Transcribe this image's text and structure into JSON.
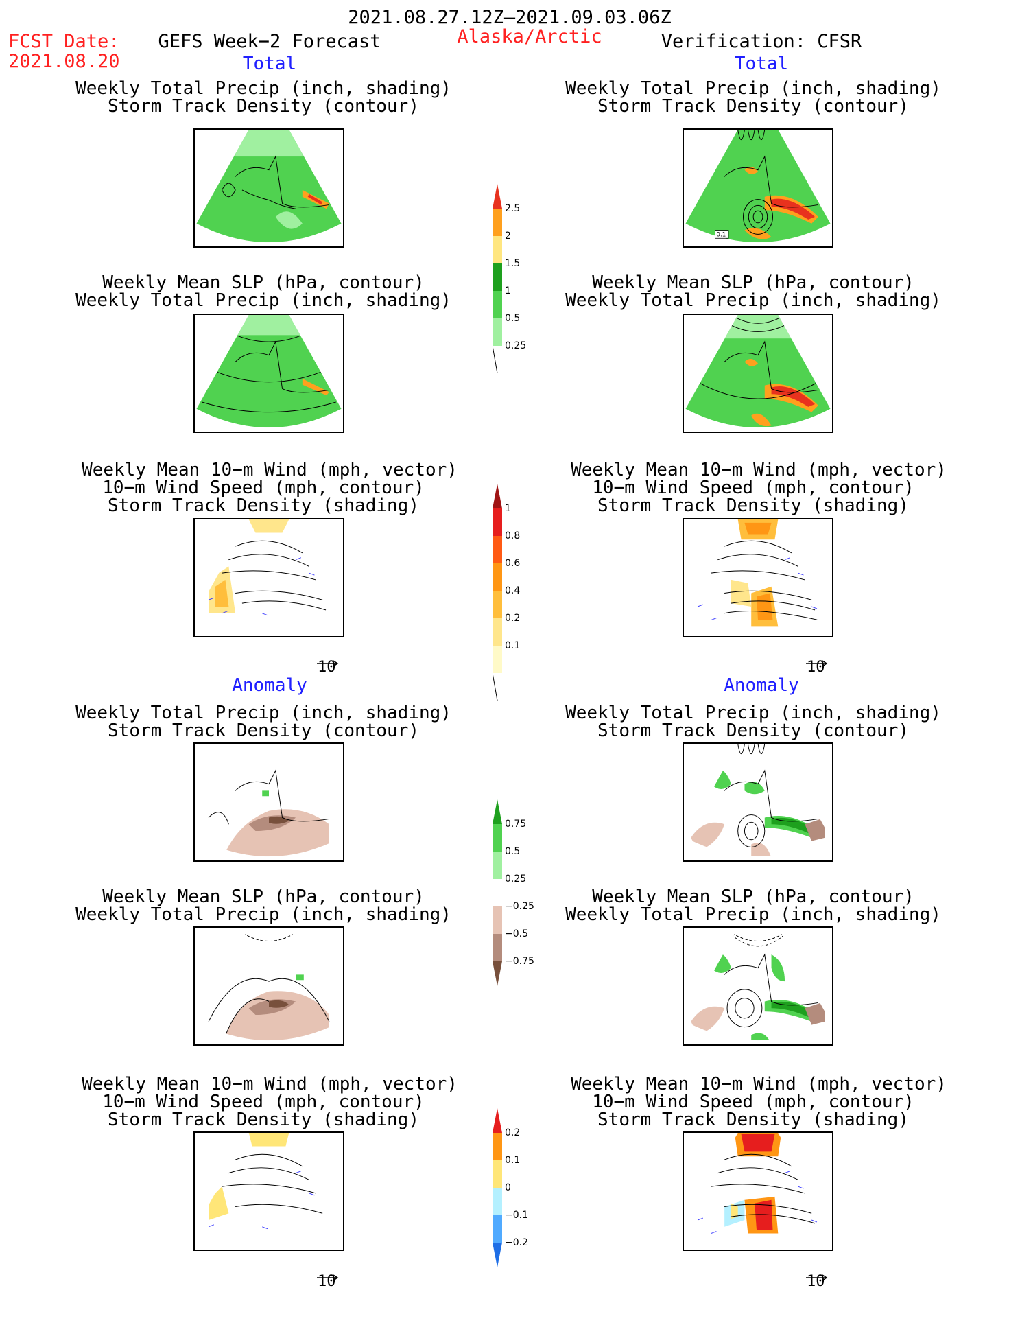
{
  "header": {
    "date_range": "2021.08.27.12Z–2021.09.03.06Z",
    "fcst_label": "FCST Date:",
    "fcst_date": "2021.08.20",
    "forecast_title": "GEFS Week−2 Forecast",
    "region": "Alaska/Arctic",
    "verification": "Verification: CFSR"
  },
  "sections": {
    "total": "Total",
    "anomaly": "Anomaly"
  },
  "panel_titles": {
    "precip_track": [
      "Weekly Total Precip (inch, shading)",
      "Storm Track Density (contour)"
    ],
    "slp_precip": [
      "Weekly Mean SLP (hPa, contour)",
      "Weekly Total Precip (inch, shading)"
    ],
    "wind_track": [
      "Weekly Mean 10−m Wind (mph, vector)",
      "10−m Wind Speed (mph, contour)",
      "Storm Track Density (shading)"
    ]
  },
  "vector_ref": "10",
  "contour_label": "0.1",
  "colorbars": {
    "precip_total": {
      "labels": [
        "2.5",
        "2",
        "1.5",
        "1",
        "0.5",
        "0.25"
      ],
      "colors": [
        "#e8321e",
        "#ffa01e",
        "#ffe680",
        "#1ea01e",
        "#50d250",
        "#a0f0a0"
      ]
    },
    "track_total": {
      "labels": [
        "1",
        "0.8",
        "0.6",
        "0.4",
        "0.2",
        "0.1"
      ],
      "colors": [
        "#a01414",
        "#e61e1e",
        "#ff5a14",
        "#ff9614",
        "#ffbe3c",
        "#ffe68c",
        "#fffac8"
      ]
    },
    "precip_anom": {
      "labels": [
        "0.75",
        "0.5",
        "0.25",
        "−0.25",
        "−0.5",
        "−0.75"
      ],
      "colors": [
        "#1ea01e",
        "#50d250",
        "#a0f0a0",
        "#ffffff",
        "#e6c3b4",
        "#b48c7d",
        "#78503c"
      ]
    },
    "track_anom": {
      "labels": [
        "0.2",
        "0.1",
        "0",
        "−0.1",
        "−0.2"
      ],
      "colors": [
        "#e61e1e",
        "#ff9614",
        "#ffe678",
        "#b4f0ff",
        "#50aaff",
        "#1e6ee6"
      ]
    }
  }
}
